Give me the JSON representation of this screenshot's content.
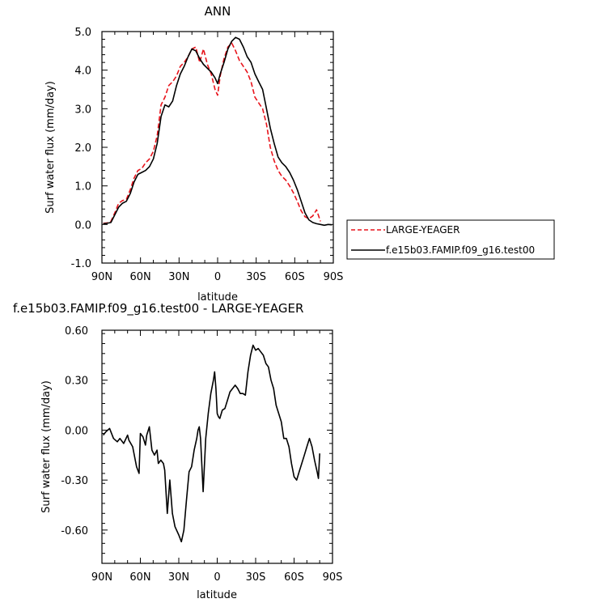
{
  "chart_data": [
    {
      "type": "line",
      "title": "ANN",
      "xlabel": "latitude",
      "ylabel": "Surf water flux (mm/day)",
      "xlim": [
        90,
        -90
      ],
      "ylim": [
        -1.0,
        5.0
      ],
      "x_ticks": [
        {
          "value": 90,
          "label": "90N"
        },
        {
          "value": 60,
          "label": "60N"
        },
        {
          "value": 30,
          "label": "30N"
        },
        {
          "value": 0,
          "label": "0"
        },
        {
          "value": -30,
          "label": "30S"
        },
        {
          "value": -60,
          "label": "60S"
        },
        {
          "value": -90,
          "label": "90S"
        }
      ],
      "y_ticks": [
        {
          "value": 5.0,
          "label": "5.0"
        },
        {
          "value": 4.0,
          "label": "4.0"
        },
        {
          "value": 3.0,
          "label": "3.0"
        },
        {
          "value": 2.0,
          "label": "2.0"
        },
        {
          "value": 1.0,
          "label": "1.0"
        },
        {
          "value": 0.0,
          "label": "0.0"
        },
        {
          "value": -1.0,
          "label": "-1.0"
        }
      ],
      "legend": "right",
      "grid": false,
      "series": [
        {
          "name": "LARGE-YEAGER",
          "color": "#e8141c",
          "dash": true,
          "x": [
            89,
            86,
            83,
            80,
            77,
            74,
            71,
            68,
            65,
            62,
            59,
            56,
            53,
            50,
            47,
            44,
            41,
            38,
            35,
            32,
            29,
            26,
            23,
            20,
            17,
            14,
            11,
            8,
            5,
            2,
            0,
            -2,
            -5,
            -8,
            -11,
            -14,
            -17,
            -20,
            -23,
            -26,
            -29,
            -32,
            -35,
            -38,
            -41,
            -44,
            -47,
            -50,
            -53,
            -56,
            -59,
            -62,
            -65,
            -68,
            -71,
            -74,
            -77,
            -80
          ],
          "y": [
            0.03,
            0.04,
            0.08,
            0.3,
            0.55,
            0.62,
            0.65,
            0.9,
            1.2,
            1.4,
            1.45,
            1.6,
            1.7,
            1.9,
            2.3,
            3.1,
            3.3,
            3.6,
            3.7,
            3.85,
            4.1,
            4.2,
            4.35,
            4.55,
            4.6,
            4.2,
            4.55,
            4.15,
            3.9,
            3.5,
            3.35,
            3.85,
            4.3,
            4.6,
            4.7,
            4.5,
            4.25,
            4.1,
            3.95,
            3.7,
            3.3,
            3.15,
            3.0,
            2.6,
            2.0,
            1.65,
            1.4,
            1.25,
            1.15,
            1.0,
            0.82,
            0.6,
            0.35,
            0.2,
            0.15,
            0.22,
            0.38,
            0.08
          ]
        },
        {
          "name": "f.e15b03.FAMIP.f09_g16.test00",
          "color": "#000000",
          "dash": false,
          "x": [
            89,
            86,
            83,
            80,
            77,
            74,
            71,
            68,
            65,
            62,
            59,
            56,
            53,
            50,
            47,
            44,
            41,
            38,
            35,
            32,
            29,
            26,
            23,
            20,
            17,
            14,
            11,
            8,
            5,
            2,
            0,
            -2,
            -5,
            -8,
            -11,
            -14,
            -17,
            -20,
            -23,
            -26,
            -29,
            -32,
            -35,
            -38,
            -41,
            -44,
            -47,
            -50,
            -53,
            -56,
            -59,
            -62,
            -65,
            -68,
            -71,
            -74,
            -77,
            -80,
            -83,
            -86,
            -89
          ],
          "y": [
            0.02,
            0.03,
            0.05,
            0.25,
            0.45,
            0.55,
            0.6,
            0.8,
            1.1,
            1.3,
            1.35,
            1.4,
            1.5,
            1.7,
            2.1,
            2.8,
            3.1,
            3.05,
            3.2,
            3.6,
            3.9,
            4.1,
            4.35,
            4.55,
            4.5,
            4.3,
            4.15,
            4.05,
            3.95,
            3.8,
            3.65,
            3.9,
            4.2,
            4.55,
            4.75,
            4.85,
            4.8,
            4.6,
            4.35,
            4.2,
            3.9,
            3.7,
            3.5,
            3.0,
            2.5,
            2.1,
            1.75,
            1.6,
            1.5,
            1.35,
            1.15,
            0.9,
            0.6,
            0.3,
            0.12,
            0.05,
            0.02,
            0.0,
            -0.02,
            0.0,
            -0.01
          ]
        }
      ]
    },
    {
      "type": "line",
      "title": "f.e15b03.FAMIP.f09_g16.test00 - LARGE-YEAGER",
      "xlabel": "latitude",
      "ylabel": "Surf water flux (mm/day)",
      "xlim": [
        90,
        -90
      ],
      "ylim": [
        -0.8,
        0.6
      ],
      "x_ticks": [
        {
          "value": 90,
          "label": "90N"
        },
        {
          "value": 60,
          "label": "60N"
        },
        {
          "value": 30,
          "label": "30N"
        },
        {
          "value": 0,
          "label": "0"
        },
        {
          "value": -30,
          "label": "30S"
        },
        {
          "value": -60,
          "label": "60S"
        },
        {
          "value": -90,
          "label": "90S"
        }
      ],
      "y_ticks": [
        {
          "value": 0.6,
          "label": "0.60"
        },
        {
          "value": 0.3,
          "label": "0.30"
        },
        {
          "value": 0.0,
          "label": "0.00"
        },
        {
          "value": -0.3,
          "label": "-0.30"
        },
        {
          "value": -0.6,
          "label": "-0.60"
        }
      ],
      "grid": false,
      "series": [
        {
          "color": "#000000",
          "dash": false,
          "x": [
            89,
            87,
            84,
            81,
            78,
            76,
            73,
            70,
            69,
            66,
            63,
            61,
            60,
            58,
            56,
            55,
            53,
            51,
            49,
            47,
            46,
            44,
            42,
            41,
            39,
            37,
            35,
            33,
            30,
            28,
            26,
            24,
            22,
            20,
            18,
            16,
            15,
            14,
            13,
            11,
            9,
            7,
            5,
            3,
            2,
            1,
            0,
            -1,
            -2,
            -4,
            -6,
            -8,
            -10,
            -12,
            -14,
            -16,
            -18,
            -20,
            -22,
            -24,
            -26,
            -28,
            -30,
            -32,
            -33,
            -34,
            -36,
            -38,
            -40,
            -42,
            -44,
            -46,
            -48,
            -50,
            -52,
            -54,
            -56,
            -58,
            -60,
            -62,
            -64,
            -66,
            -68,
            -70,
            -72,
            -74,
            -76,
            -78,
            -79,
            -80
          ],
          "y": [
            -0.03,
            -0.01,
            0.01,
            -0.05,
            -0.07,
            -0.05,
            -0.08,
            -0.03,
            -0.06,
            -0.1,
            -0.22,
            -0.26,
            -0.02,
            -0.04,
            -0.09,
            -0.03,
            0.02,
            -0.12,
            -0.15,
            -0.12,
            -0.2,
            -0.18,
            -0.2,
            -0.24,
            -0.5,
            -0.3,
            -0.5,
            -0.58,
            -0.63,
            -0.67,
            -0.6,
            -0.42,
            -0.25,
            -0.22,
            -0.12,
            -0.05,
            0.0,
            0.02,
            -0.05,
            -0.37,
            -0.05,
            0.1,
            0.22,
            0.3,
            0.35,
            0.25,
            0.1,
            0.08,
            0.07,
            0.12,
            0.13,
            0.18,
            0.23,
            0.25,
            0.27,
            0.25,
            0.22,
            0.22,
            0.21,
            0.35,
            0.45,
            0.51,
            0.48,
            0.49,
            0.48,
            0.47,
            0.45,
            0.4,
            0.38,
            0.3,
            0.25,
            0.15,
            0.1,
            0.05,
            -0.05,
            -0.05,
            -0.1,
            -0.2,
            -0.28,
            -0.3,
            -0.25,
            -0.2,
            -0.15,
            -0.1,
            -0.05,
            -0.1,
            -0.18,
            -0.25,
            -0.29,
            -0.14
          ]
        }
      ]
    }
  ]
}
